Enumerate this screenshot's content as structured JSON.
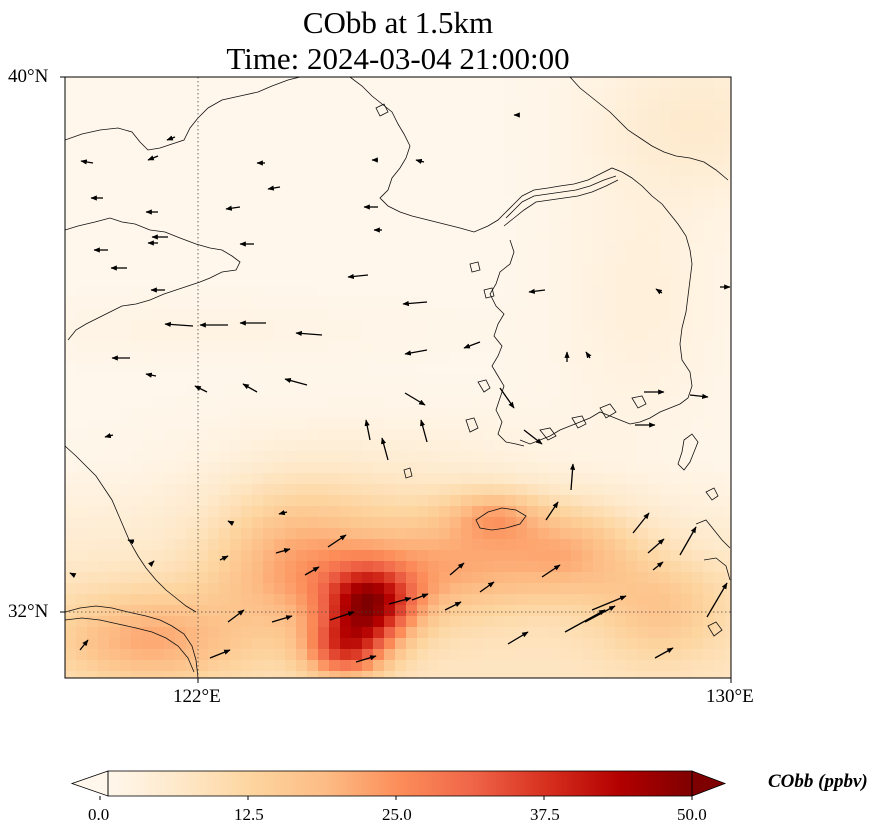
{
  "figure": {
    "title_line1": "CObb at 1.5km",
    "title_line2": "Time: 2024-03-04 21:00:00"
  },
  "map": {
    "lat_range": [
      31.0,
      40.0
    ],
    "lon_range": [
      120.0,
      130.0
    ],
    "lat_ticks": [
      {
        "value": 40,
        "label": "40°N"
      },
      {
        "value": 32,
        "label": "32°N"
      }
    ],
    "lon_ticks": [
      {
        "value": 122,
        "label": "122°E"
      },
      {
        "value": 130,
        "label": "130°E"
      }
    ],
    "gridlines": "dotted at 122°E and 32°N",
    "field": "CObb concentration shading (OrRd colormap)",
    "vectors": "wind arrows"
  },
  "colorbar": {
    "label": "CObb (ppbv)",
    "vmin": 0.0,
    "vmax": 50.0,
    "ticks": [
      "0.0",
      "12.5",
      "25.0",
      "37.5",
      "50.0"
    ],
    "extend": "both",
    "colors": [
      "#fff7ec",
      "#fee8c8",
      "#fdd49e",
      "#fdbb84",
      "#fc8d59",
      "#ef6548",
      "#d7301f",
      "#b30000",
      "#7f0000"
    ]
  }
}
